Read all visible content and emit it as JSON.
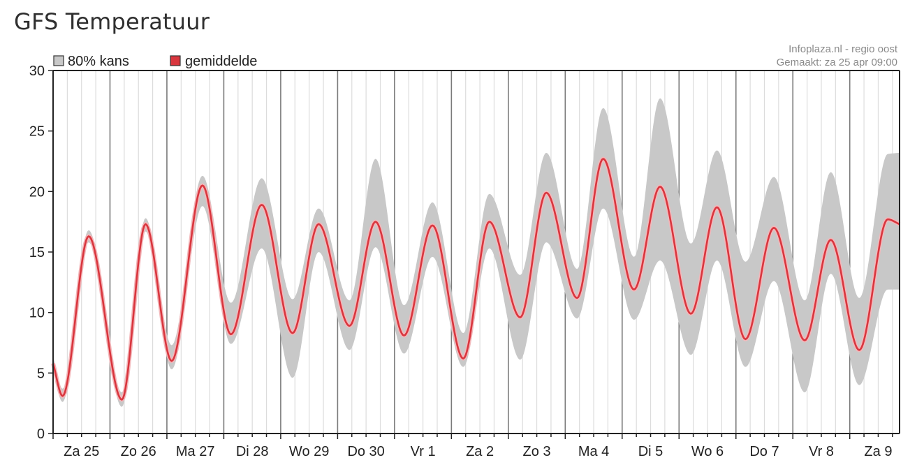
{
  "page": {
    "title": "GFS Temperatuur"
  },
  "chart_data": {
    "type": "area",
    "title": "",
    "xlabel": "",
    "ylabel": "",
    "ylim": [
      0,
      30
    ],
    "y_ticks": [
      0,
      5,
      10,
      15,
      20,
      25,
      30
    ],
    "x_unit": "hours since start of Za 25",
    "xlim": [
      0,
      357
    ],
    "day_labels": [
      "Za 25",
      "Zo 26",
      "Ma 27",
      "Di 28",
      "Wo 29",
      "Do 30",
      "Vr 1",
      "Za 2",
      "Zo 3",
      "Ma 4",
      "Di 5",
      "Wo 6",
      "Do 7",
      "Vr 8",
      "Za 9"
    ],
    "legend": {
      "placement": "top-left",
      "items": [
        {
          "label": "80% kans",
          "color": "#c8c8c8"
        },
        {
          "label": "gemiddelde",
          "color": "#d9363e"
        }
      ]
    },
    "source_lines": [
      "Infoplaza.nl - regio oost",
      "Gemaakt: za 25 apr 09:00"
    ],
    "grid": true,
    "colors": {
      "band": "#c8c8c8",
      "mean": "#d9363e",
      "mean_glow": "#f3b7ba",
      "day_grid": "#7a7a7a",
      "minor_grid": "#dcdcdc"
    },
    "series": [
      {
        "name": "gemiddelde",
        "x": [
          0,
          4,
          15,
          29,
          39,
          50,
          63,
          75,
          88,
          101,
          112,
          125,
          136,
          148,
          160,
          173,
          184,
          197,
          208,
          221,
          232,
          245,
          256,
          269,
          280,
          292,
          304,
          317,
          328,
          340,
          352,
          357
        ],
        "values": [
          5.8,
          3.1,
          16.3,
          2.8,
          17.3,
          6.0,
          20.5,
          8.2,
          18.9,
          8.3,
          17.3,
          8.9,
          17.5,
          8.1,
          17.2,
          6.2,
          17.5,
          9.6,
          19.9,
          11.2,
          22.7,
          11.9,
          20.4,
          9.9,
          18.7,
          7.8,
          17.0,
          7.7,
          16.0,
          6.9,
          17.7,
          17.3
        ]
      },
      {
        "name": "80% kans upper",
        "x": [
          0,
          4,
          15,
          29,
          39,
          50,
          63,
          75,
          88,
          101,
          112,
          125,
          136,
          148,
          160,
          173,
          184,
          197,
          208,
          221,
          232,
          245,
          256,
          269,
          280,
          292,
          304,
          317,
          328,
          340,
          352,
          357
        ],
        "values": [
          6.4,
          3.7,
          16.8,
          3.4,
          17.8,
          7.3,
          21.3,
          10.8,
          21.1,
          11.1,
          18.6,
          11.0,
          22.7,
          10.6,
          19.1,
          8.3,
          19.8,
          13.1,
          23.2,
          13.6,
          26.9,
          14.6,
          27.7,
          15.7,
          23.4,
          14.2,
          21.2,
          11.0,
          21.6,
          11.2,
          23.1,
          23.2
        ]
      },
      {
        "name": "80% kans lower",
        "x": [
          0,
          4,
          15,
          29,
          39,
          50,
          63,
          75,
          88,
          101,
          112,
          125,
          136,
          148,
          160,
          173,
          184,
          197,
          208,
          221,
          232,
          245,
          256,
          269,
          280,
          292,
          304,
          317,
          328,
          340,
          352,
          357
        ],
        "values": [
          5.0,
          2.6,
          15.8,
          2.2,
          16.7,
          5.3,
          18.8,
          7.4,
          15.3,
          4.6,
          15.0,
          6.9,
          15.4,
          6.6,
          14.6,
          5.5,
          15.3,
          6.1,
          15.8,
          9.5,
          18.6,
          9.4,
          14.3,
          6.5,
          14.3,
          5.5,
          12.6,
          3.4,
          13.2,
          4.0,
          11.9,
          11.9
        ]
      }
    ]
  }
}
